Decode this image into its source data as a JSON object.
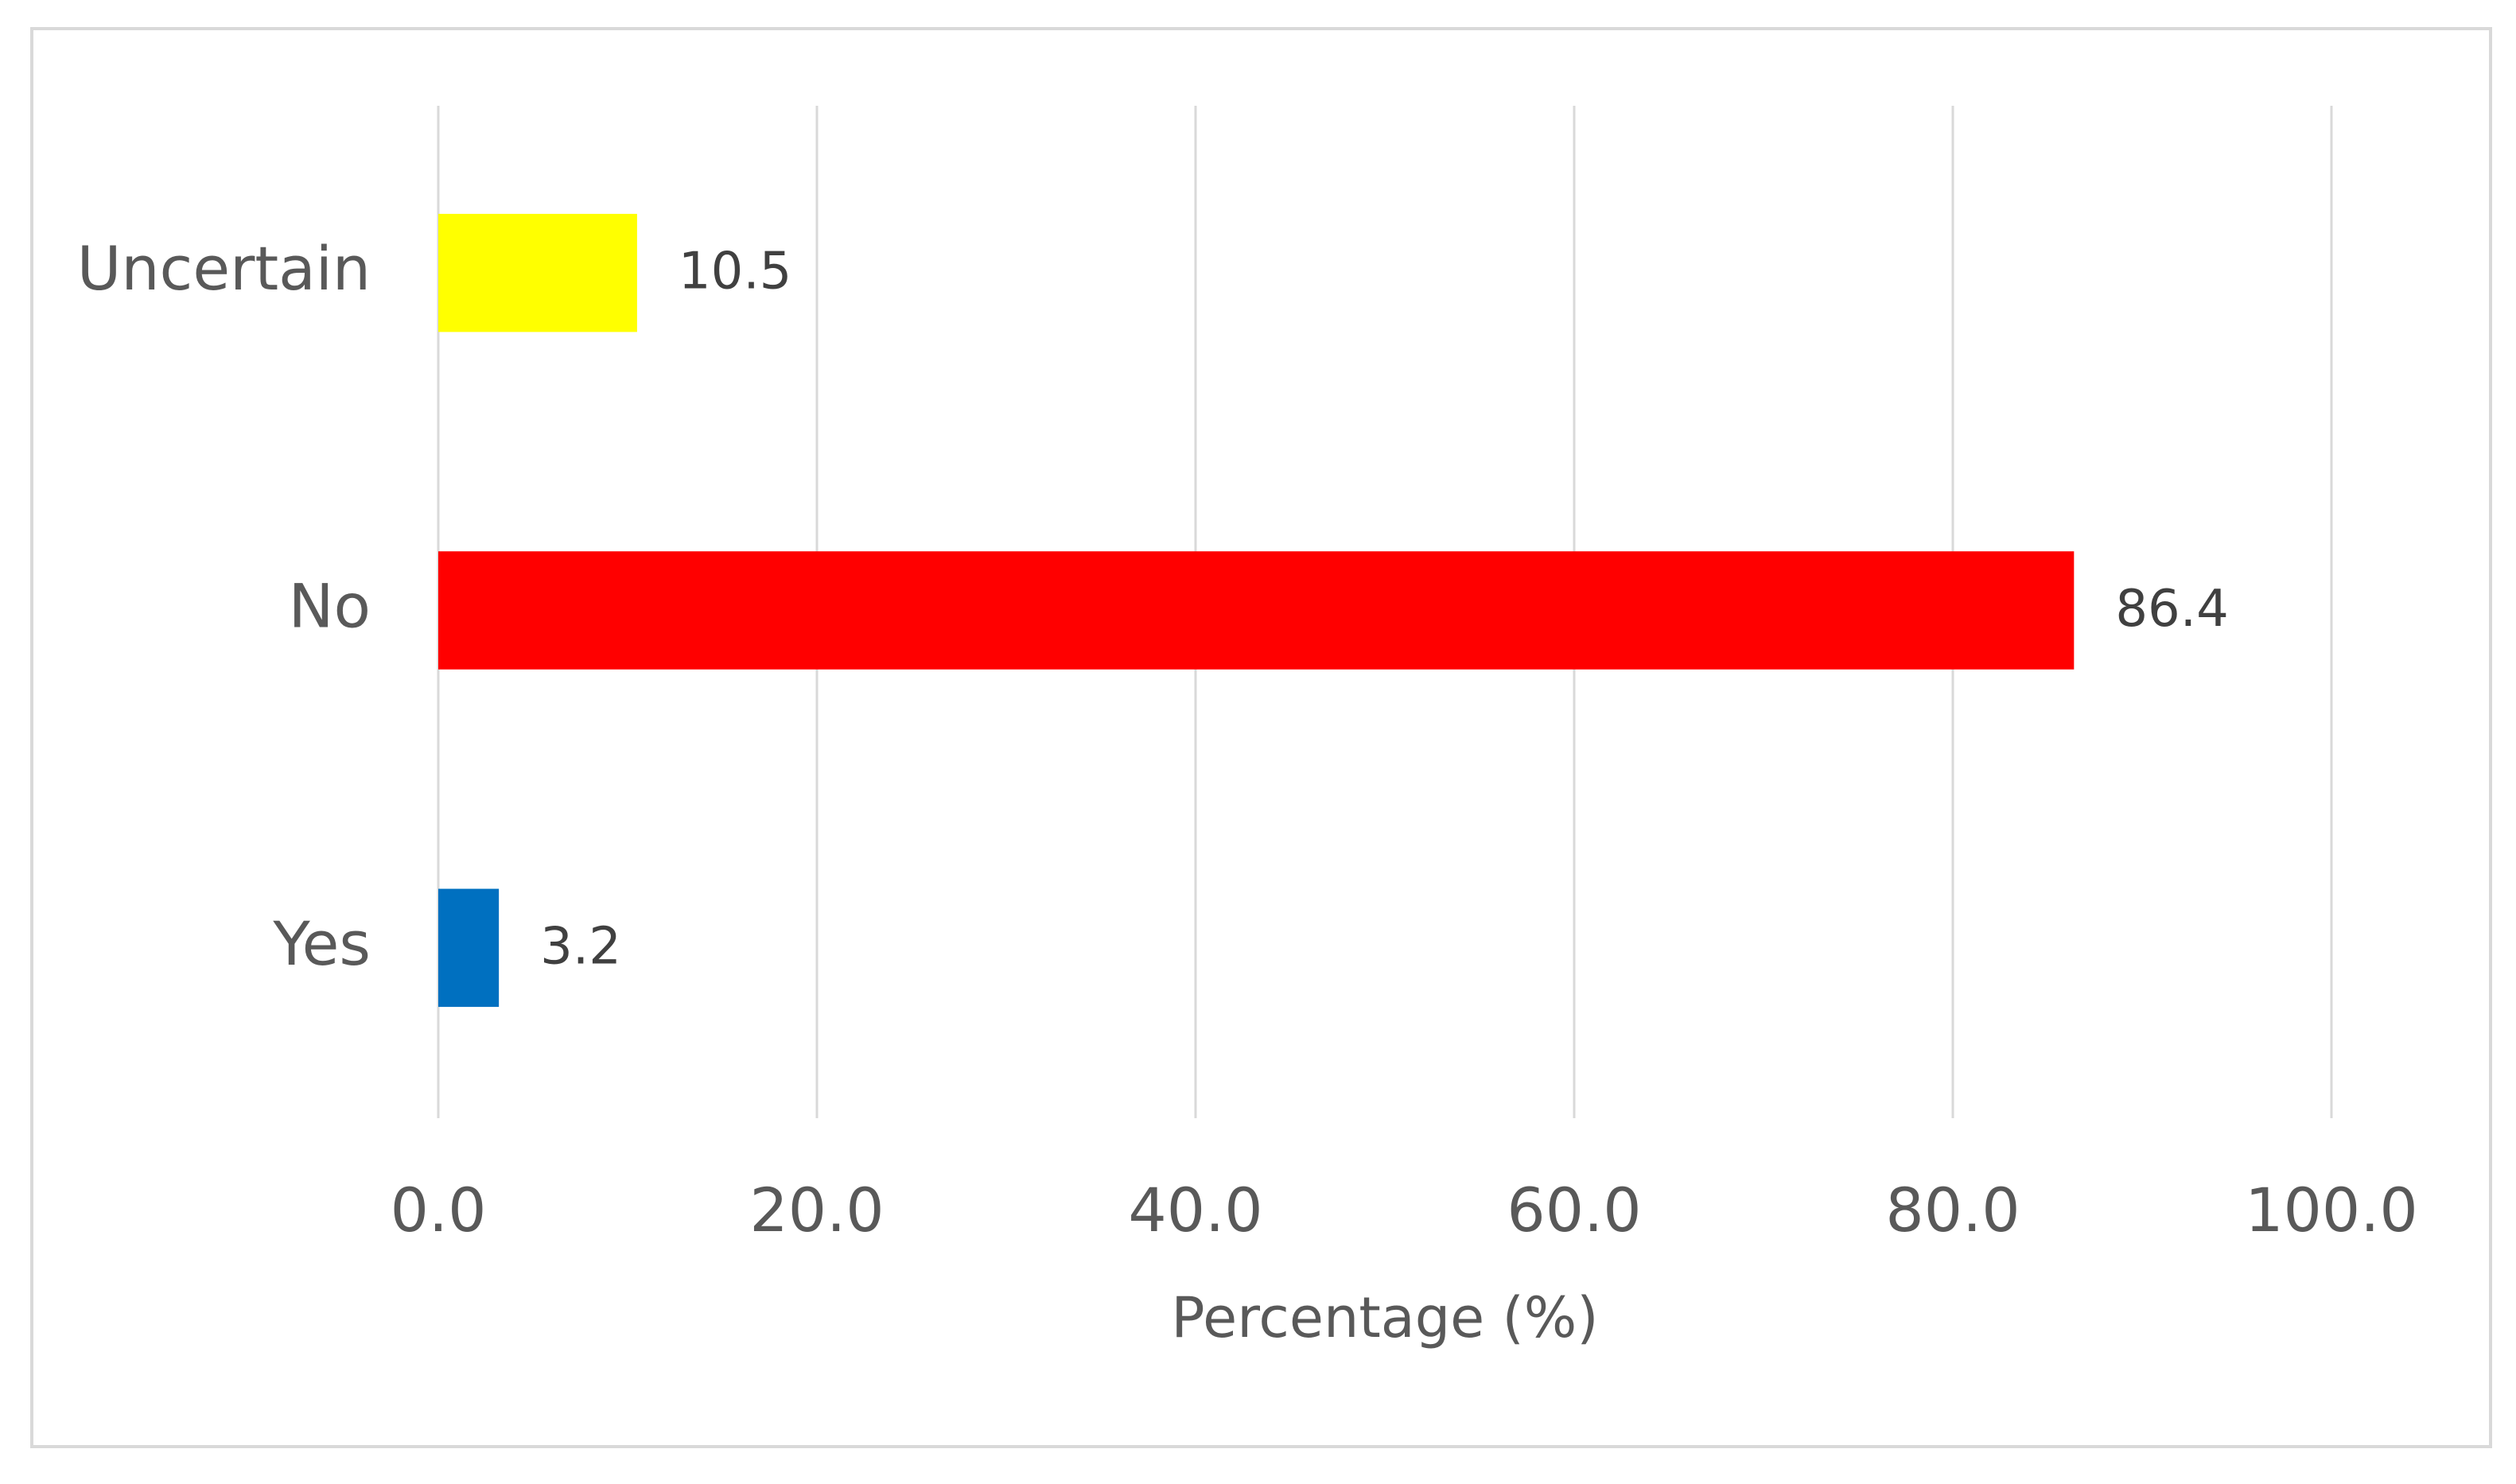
{
  "chart_data": {
    "type": "hbar",
    "categories": [
      "Uncertain",
      "No",
      "Yes"
    ],
    "values": [
      10.5,
      86.4,
      3.2
    ],
    "colors": [
      "#ffff00",
      "#ff0000",
      "#0070c0"
    ],
    "x_label": "Percentage (%)",
    "xlim": [
      0,
      100
    ],
    "xticks": [
      {
        "value": 0,
        "label": "0.0"
      },
      {
        "value": 20,
        "label": "20.0"
      },
      {
        "value": 40,
        "label": "40.0"
      },
      {
        "value": 60,
        "label": "60.0"
      },
      {
        "value": 80,
        "label": "80.0"
      },
      {
        "value": 100,
        "label": "100.0"
      }
    ],
    "grid": true
  }
}
